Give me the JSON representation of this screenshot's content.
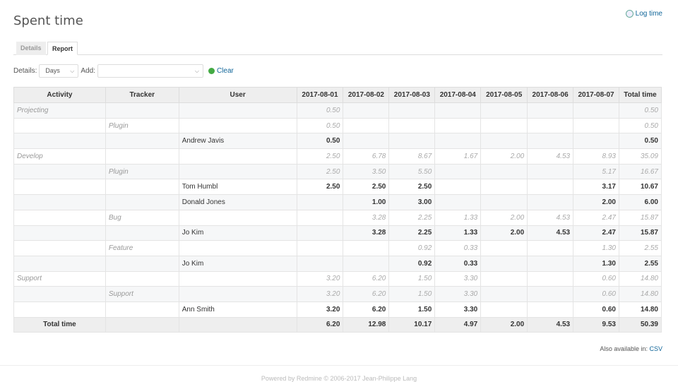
{
  "title": "Spent time",
  "log_time": "Log time",
  "tabs": [
    "Details",
    "Report"
  ],
  "filters": {
    "details_label": "Details:",
    "details_value": "Days",
    "add_label": "Add:",
    "add_value": "",
    "clear": "Clear"
  },
  "columns": [
    "Activity",
    "Tracker",
    "User",
    "2017-08-01",
    "2017-08-02",
    "2017-08-03",
    "2017-08-04",
    "2017-08-05",
    "2017-08-06",
    "2017-08-07",
    "Total time"
  ],
  "rows": [
    {
      "type": "sub",
      "cells": [
        "Projecting",
        "",
        "",
        "0.50",
        "",
        "",
        "",
        "",
        "",
        "",
        "0.50"
      ]
    },
    {
      "type": "sub",
      "cells": [
        "",
        "Plugin",
        "",
        "0.50",
        "",
        "",
        "",
        "",
        "",
        "",
        "0.50"
      ]
    },
    {
      "type": "det",
      "cells": [
        "",
        "",
        "Andrew Javis",
        "0.50",
        "",
        "",
        "",
        "",
        "",
        "",
        "0.50"
      ]
    },
    {
      "type": "sub",
      "cells": [
        "Develop",
        "",
        "",
        "2.50",
        "6.78",
        "8.67",
        "1.67",
        "2.00",
        "4.53",
        "8.93",
        "35.09"
      ]
    },
    {
      "type": "sub",
      "cells": [
        "",
        "Plugin",
        "",
        "2.50",
        "3.50",
        "5.50",
        "",
        "",
        "",
        "5.17",
        "16.67"
      ]
    },
    {
      "type": "det",
      "cells": [
        "",
        "",
        "Tom Humbl",
        "2.50",
        "2.50",
        "2.50",
        "",
        "",
        "",
        "3.17",
        "10.67"
      ]
    },
    {
      "type": "det",
      "cells": [
        "",
        "",
        "Donald Jones",
        "",
        "1.00",
        "3.00",
        "",
        "",
        "",
        "2.00",
        "6.00"
      ]
    },
    {
      "type": "sub",
      "cells": [
        "",
        "Bug",
        "",
        "",
        "3.28",
        "2.25",
        "1.33",
        "2.00",
        "4.53",
        "2.47",
        "15.87"
      ]
    },
    {
      "type": "det",
      "cells": [
        "",
        "",
        "Jo Kim",
        "",
        "3.28",
        "2.25",
        "1.33",
        "2.00",
        "4.53",
        "2.47",
        "15.87"
      ]
    },
    {
      "type": "sub",
      "cells": [
        "",
        "Feature",
        "",
        "",
        "",
        "0.92",
        "0.33",
        "",
        "",
        "1.30",
        "2.55"
      ]
    },
    {
      "type": "det",
      "cells": [
        "",
        "",
        "Jo Kim",
        "",
        "",
        "0.92",
        "0.33",
        "",
        "",
        "1.30",
        "2.55"
      ]
    },
    {
      "type": "sub",
      "cells": [
        "Support",
        "",
        "",
        "3.20",
        "6.20",
        "1.50",
        "3.30",
        "",
        "",
        "0.60",
        "14.80"
      ]
    },
    {
      "type": "sub",
      "cells": [
        "",
        "Support",
        "",
        "3.20",
        "6.20",
        "1.50",
        "3.30",
        "",
        "",
        "0.60",
        "14.80"
      ]
    },
    {
      "type": "det",
      "cells": [
        "",
        "",
        "Ann Smith",
        "3.20",
        "6.20",
        "1.50",
        "3.30",
        "",
        "",
        "0.60",
        "14.80"
      ]
    }
  ],
  "total": {
    "label": "Total time",
    "values": [
      "6.20",
      "12.98",
      "10.17",
      "4.97",
      "2.00",
      "4.53",
      "9.53",
      "50.39"
    ]
  },
  "also_available": "Also available in:",
  "csv": "CSV",
  "footer": "Powered by Redmine © 2006-2017 Jean-Philippe Lang"
}
